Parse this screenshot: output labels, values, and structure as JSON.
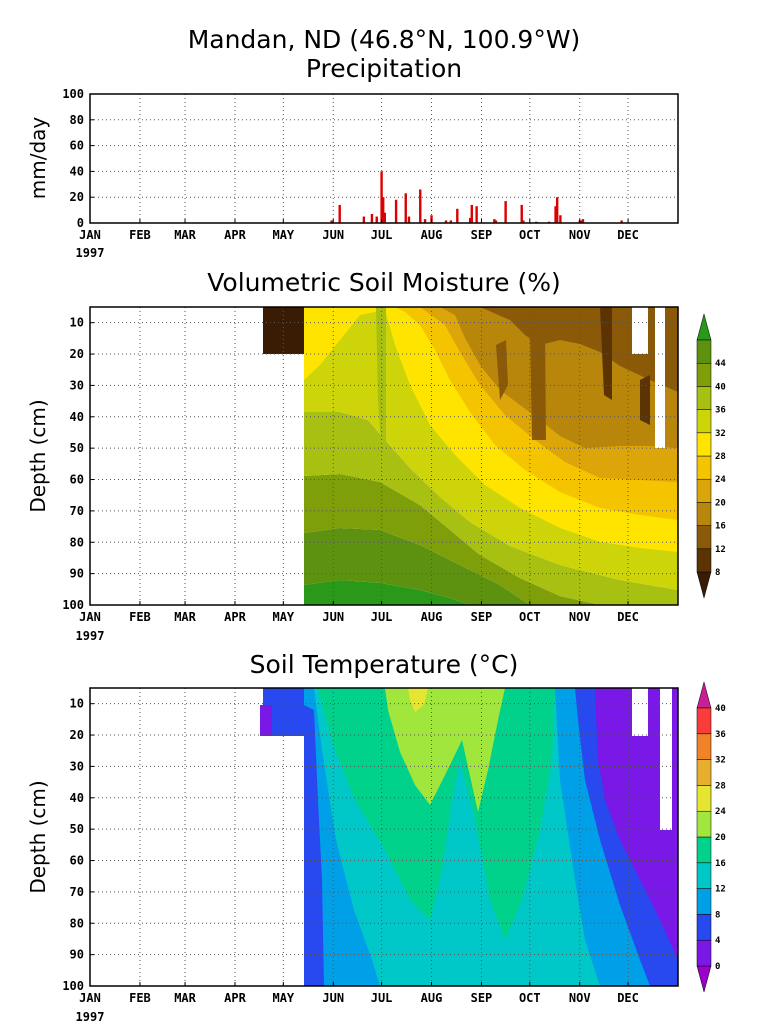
{
  "header": {
    "location": "Mandan, ND  (46.8°N, 100.9°W)"
  },
  "chart_data": [
    {
      "type": "bar",
      "title": "Precipitation",
      "ylabel": "mm/day",
      "ylim": [
        0,
        100
      ],
      "yticks": [
        "0",
        "20",
        "40",
        "60",
        "80",
        "100"
      ],
      "xticks": [
        "JAN",
        "FEB",
        "MAR",
        "APR",
        "MAY",
        "JUN",
        "JUL",
        "AUG",
        "SEP",
        "OCT",
        "NOV",
        "DEC"
      ],
      "year_label": "1997",
      "grid": true,
      "bar_color": "#dd0000",
      "x_unit": "day_of_year",
      "x": [
        150,
        155,
        170,
        175,
        178,
        181,
        182,
        183,
        190,
        196,
        198,
        205,
        208,
        212,
        221,
        224,
        228,
        236,
        237,
        240,
        251,
        252,
        258,
        268,
        269,
        277,
        285,
        289,
        290,
        292,
        304,
        305,
        306,
        330
      ],
      "values": [
        2,
        14,
        5,
        7,
        5,
        40,
        20,
        8,
        18,
        23,
        5,
        26,
        3,
        6,
        2,
        2,
        11,
        4,
        14,
        13,
        3,
        2,
        17,
        14,
        2,
        1,
        1,
        13,
        20,
        6,
        2,
        2,
        3,
        2
      ]
    },
    {
      "type": "heatmap",
      "title": "Volumetric Soil Moisture (%)",
      "ylabel": "Depth (cm)",
      "yticks": [
        "10",
        "20",
        "30",
        "40",
        "50",
        "60",
        "70",
        "80",
        "90",
        "100"
      ],
      "xticks": [
        "JAN",
        "FEB",
        "MAR",
        "APR",
        "MAY",
        "JUN",
        "JUL",
        "AUG",
        "SEP",
        "OCT",
        "NOV",
        "DEC"
      ],
      "year_label": "1997",
      "colorbar": {
        "labels": [
          "8",
          "12",
          "16",
          "20",
          "24",
          "28",
          "32",
          "36",
          "40",
          "44"
        ],
        "colors": [
          "#3a1c05",
          "#5c3404",
          "#8a5a08",
          "#b8860b",
          "#dca50a",
          "#f4c400",
          "#ffe400",
          "#cdd40a",
          "#a8c012",
          "#7f9f0a",
          "#5c9210",
          "#2a9818"
        ]
      }
    },
    {
      "type": "heatmap",
      "title": "Soil Temperature (°C)",
      "ylabel": "Depth (cm)",
      "yticks": [
        "10",
        "20",
        "30",
        "40",
        "50",
        "60",
        "70",
        "80",
        "90",
        "100"
      ],
      "xticks": [
        "JAN",
        "FEB",
        "MAR",
        "APR",
        "MAY",
        "JUN",
        "JUL",
        "AUG",
        "SEP",
        "OCT",
        "NOV",
        "DEC"
      ],
      "year_label": "1997",
      "colorbar": {
        "labels": [
          "0",
          "4",
          "8",
          "12",
          "16",
          "20",
          "24",
          "28",
          "32",
          "36",
          "40"
        ],
        "colors": [
          "#9a00c8",
          "#7a18e8",
          "#2848f0",
          "#00a0e8",
          "#00c8c8",
          "#00d28c",
          "#a0e63c",
          "#e6e632",
          "#e6af2d",
          "#f08228",
          "#fa3c3c",
          "#c81e96"
        ]
      }
    }
  ]
}
